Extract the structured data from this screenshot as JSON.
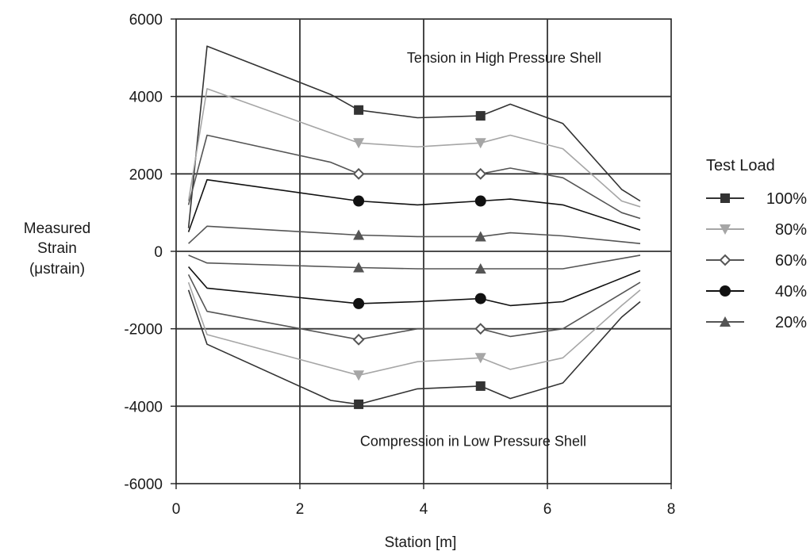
{
  "chart_data": {
    "type": "line",
    "title": "",
    "xlabel": "Station [m]",
    "ylabel_lines": [
      "Measured",
      "Strain",
      "(μstrain)"
    ],
    "xlim": [
      0,
      8
    ],
    "ylim": [
      -6000,
      6000
    ],
    "x_ticks": [
      0,
      2,
      4,
      6,
      8
    ],
    "x_tick_labels": [
      "0",
      "2",
      "4",
      "6",
      "8"
    ],
    "y_ticks": [
      6000,
      4000,
      2000,
      0,
      -2000,
      -4000,
      -6000
    ],
    "y_tick_labels": [
      "6000",
      "4000",
      "2000",
      "0",
      "-2000",
      "-4000",
      "-6000"
    ],
    "grid": true,
    "annotations": [
      {
        "text": "Tension in High Pressure Shell",
        "x": 5.3,
        "y": 5000
      },
      {
        "text": "Compression in Low Pressure Shell",
        "x": 4.8,
        "y": -4900
      }
    ],
    "legend": {
      "title": "Test Load",
      "placement": "right"
    },
    "marker_x": [
      2.95,
      4.92
    ],
    "series": [
      {
        "name": "100%",
        "color": "#333333",
        "marker": "square",
        "group": "tension",
        "x": [
          0.2,
          0.5,
          2.5,
          2.95,
          3.9,
          4.92,
          5.4,
          6.25,
          7.2,
          7.5
        ],
        "y": [
          600,
          5300,
          4050,
          3650,
          3450,
          3500,
          3800,
          3300,
          1600,
          1300
        ]
      },
      {
        "name": "80%",
        "color": "#a6a6a6",
        "marker": "triangle-down",
        "group": "tension",
        "x": [
          0.2,
          0.5,
          2.95,
          3.9,
          4.92,
          5.4,
          6.25,
          7.2,
          7.5
        ],
        "y": [
          1300,
          4200,
          2800,
          2700,
          2800,
          3000,
          2650,
          1300,
          1150
        ]
      },
      {
        "name": "60%",
        "color": "#555555",
        "marker": "diamond-open",
        "group": "tension",
        "x": [
          0.2,
          0.5,
          2.5,
          2.95,
          3.9,
          4.92,
          5.4,
          6.25,
          7.2,
          7.5
        ],
        "y": [
          1200,
          3000,
          2300,
          2000,
          2000,
          2000,
          2150,
          1900,
          1000,
          850
        ]
      },
      {
        "name": "40%",
        "color": "#111111",
        "marker": "circle",
        "group": "tension",
        "x": [
          0.2,
          0.5,
          2.95,
          3.9,
          4.92,
          5.4,
          6.25,
          7.5
        ],
        "y": [
          500,
          1850,
          1300,
          1200,
          1300,
          1350,
          1200,
          550
        ]
      },
      {
        "name": "20%",
        "color": "#555555",
        "marker": "triangle-up",
        "group": "tension",
        "x": [
          0.2,
          0.5,
          2.95,
          3.9,
          4.92,
          5.4,
          6.25,
          7.5
        ],
        "y": [
          200,
          650,
          420,
          380,
          380,
          480,
          400,
          200
        ]
      },
      {
        "name": "20%",
        "color": "#555555",
        "marker": "triangle-up",
        "group": "compression",
        "x": [
          0.2,
          0.5,
          2.95,
          3.9,
          4.92,
          6.25,
          7.5
        ],
        "y": [
          -100,
          -300,
          -420,
          -450,
          -450,
          -450,
          -100
        ]
      },
      {
        "name": "40%",
        "color": "#111111",
        "marker": "circle",
        "group": "compression",
        "x": [
          0.2,
          0.5,
          2.95,
          3.9,
          4.92,
          5.4,
          6.25,
          7.5
        ],
        "y": [
          -400,
          -950,
          -1350,
          -1300,
          -1220,
          -1400,
          -1300,
          -500
        ]
      },
      {
        "name": "60%",
        "color": "#555555",
        "marker": "diamond-open",
        "group": "compression",
        "x": [
          0.2,
          0.5,
          2.95,
          3.9,
          4.92,
          5.4,
          6.25,
          7.5
        ],
        "y": [
          -600,
          -1550,
          -2280,
          -2000,
          -2000,
          -2200,
          -2000,
          -800
        ]
      },
      {
        "name": "80%",
        "color": "#a6a6a6",
        "marker": "triangle-down",
        "group": "compression",
        "x": [
          0.2,
          0.5,
          2.95,
          3.9,
          4.92,
          5.4,
          6.25,
          7.2,
          7.5
        ],
        "y": [
          -800,
          -2150,
          -3200,
          -2850,
          -2750,
          -3050,
          -2750,
          -1400,
          -1000
        ]
      },
      {
        "name": "100%",
        "color": "#333333",
        "marker": "square",
        "group": "compression",
        "x": [
          0.2,
          0.5,
          2.5,
          2.95,
          3.9,
          4.92,
          5.4,
          6.25,
          7.2,
          7.5
        ],
        "y": [
          -1000,
          -2400,
          -3850,
          -3950,
          -3550,
          -3480,
          -3800,
          -3400,
          -1700,
          -1300
        ]
      }
    ]
  }
}
